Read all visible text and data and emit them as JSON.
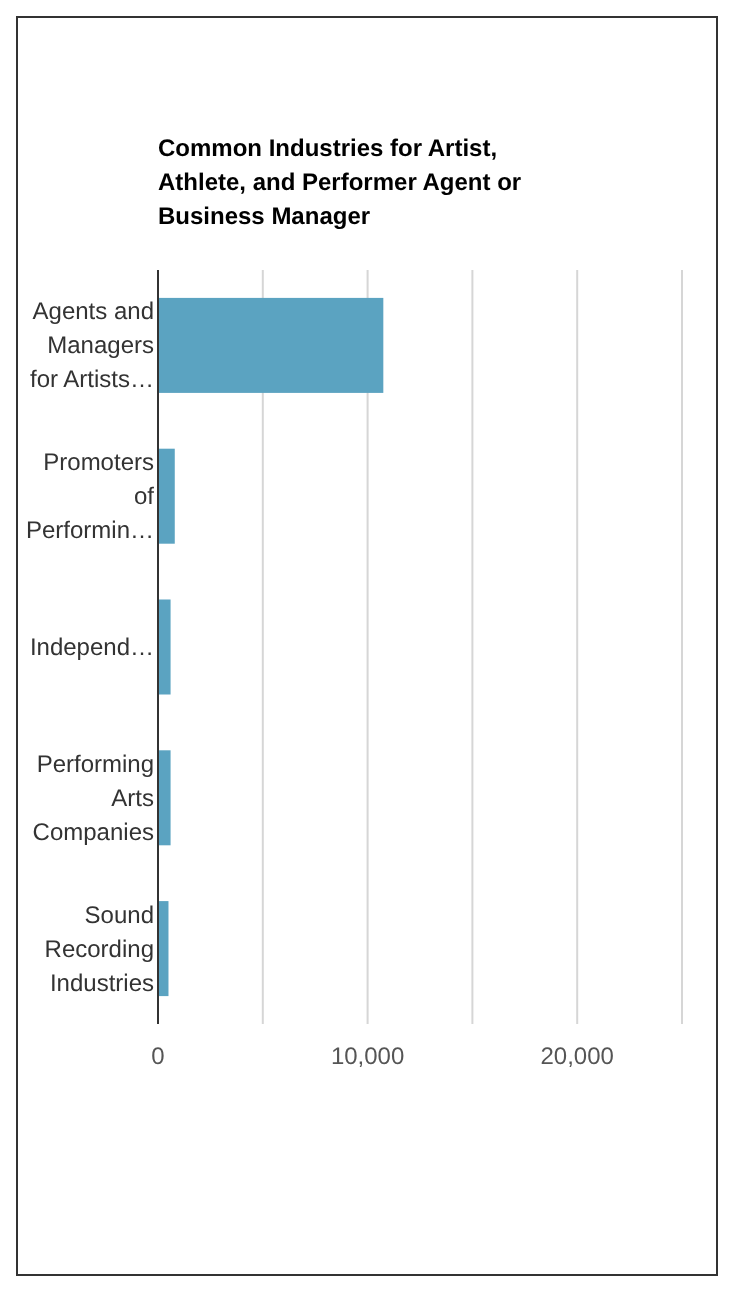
{
  "chart_data": {
    "type": "bar",
    "orientation": "horizontal",
    "title": "Common Industries for Artist, Athlete, and Performer Agent or Business Manager",
    "categories": [
      "Agents and Managers for Artists…",
      "Promoters of Performin…",
      "Independ…",
      "Performing Arts Companies",
      "Sound Recording Industries"
    ],
    "values": [
      10750,
      800,
      600,
      600,
      500
    ],
    "color": "#5ba3c1",
    "xlim": [
      0,
      25000
    ],
    "xticks": [
      0,
      {
        "value": 5000,
        "label": null
      },
      {
        "value": 10000,
        "label": "10,000"
      },
      {
        "value": 15000,
        "label": null
      },
      {
        "value": 20000,
        "label": "20,000"
      },
      {
        "value": 25000,
        "label": null
      }
    ],
    "grid": "x"
  }
}
